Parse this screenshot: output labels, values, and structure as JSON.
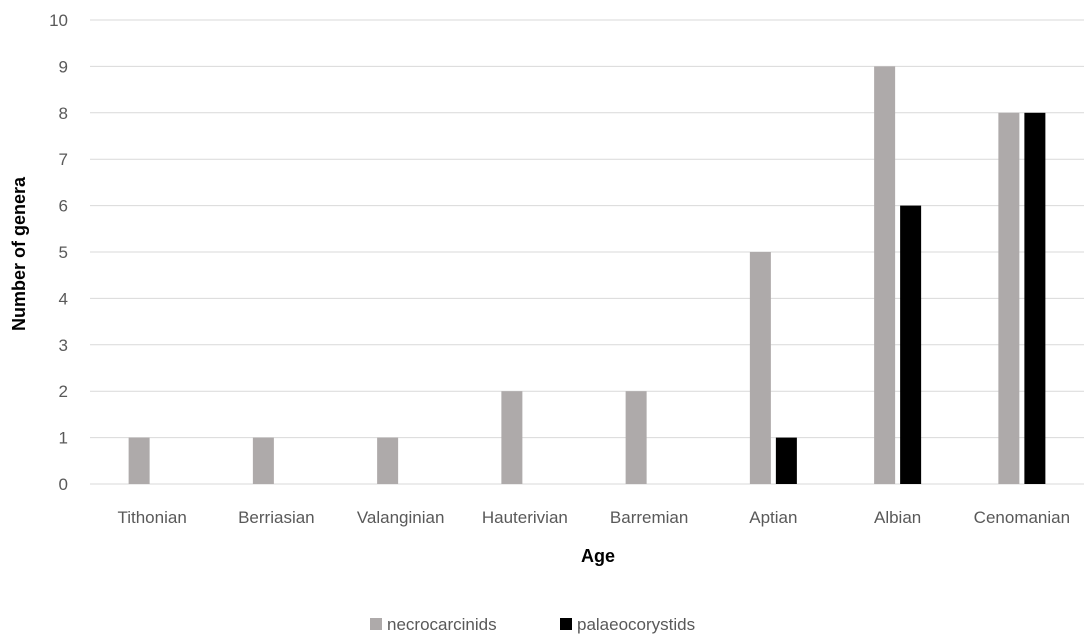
{
  "chart_data": {
    "type": "bar",
    "title": "",
    "xlabel": "Age",
    "ylabel": "Number of genera",
    "ylim": [
      0,
      10
    ],
    "yticks": [
      0,
      1,
      2,
      3,
      4,
      5,
      6,
      7,
      8,
      9,
      10
    ],
    "categories": [
      "Tithonian",
      "Berriasian",
      "Valanginian",
      "Hauterivian",
      "Barremian",
      "Aptian",
      "Albian",
      "Cenomanian"
    ],
    "series": [
      {
        "name": "necrocarcinids",
        "color": "#aeaaaa",
        "values": [
          1,
          1,
          1,
          2,
          2,
          5,
          9,
          8
        ]
      },
      {
        "name": "palaeocorystids",
        "color": "#000000",
        "values": [
          0,
          0,
          0,
          0,
          0,
          1,
          6,
          8
        ]
      }
    ],
    "grid": true,
    "legend_position": "bottom"
  }
}
